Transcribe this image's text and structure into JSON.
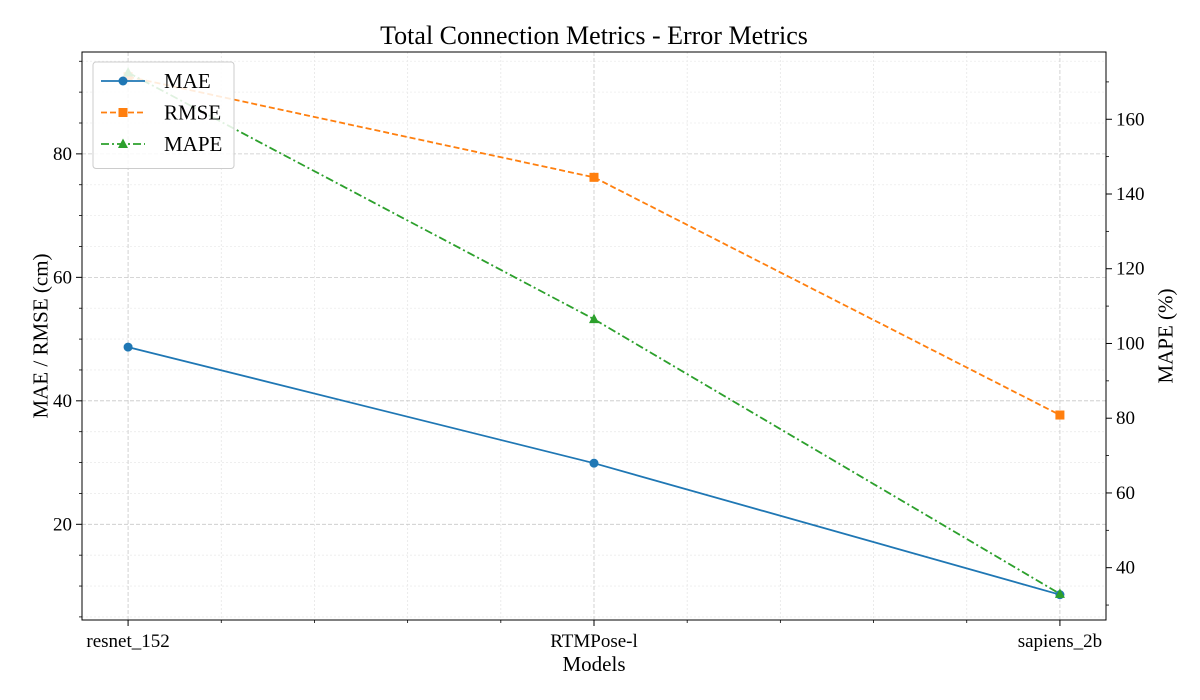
{
  "chart_data": {
    "type": "line",
    "title": "Total Connection Metrics - Error Metrics",
    "xlabel": "Models",
    "ylabel_left": "MAE / RMSE (cm)",
    "ylabel_right": "MAPE (%)",
    "categories": [
      "resnet_152",
      "RTMPose-l",
      "sapiens_2b"
    ],
    "left_axis": {
      "range": [
        96.5,
        4.5
      ],
      "inverted": true,
      "ticks": [
        20,
        40,
        60,
        80
      ]
    },
    "right_axis": {
      "range": [
        178,
        26
      ],
      "inverted": true,
      "ticks": [
        40,
        60,
        80,
        100,
        120,
        140,
        160
      ]
    },
    "grid": true,
    "legend_position": "top-left",
    "series": [
      {
        "name": "MAE",
        "axis": "left",
        "values": [
          48.7,
          29.9,
          8.6
        ],
        "color": "#1f77b4",
        "linestyle": "solid",
        "marker": "circle"
      },
      {
        "name": "RMSE",
        "axis": "left",
        "values": [
          92.5,
          76.2,
          37.7
        ],
        "color": "#ff7f0e",
        "linestyle": "dashed",
        "marker": "square"
      },
      {
        "name": "MAPE",
        "axis": "right",
        "values": [
          172.5,
          106.5,
          33.0
        ],
        "color": "#2ca02c",
        "linestyle": "dashdot",
        "marker": "triangle"
      }
    ]
  }
}
